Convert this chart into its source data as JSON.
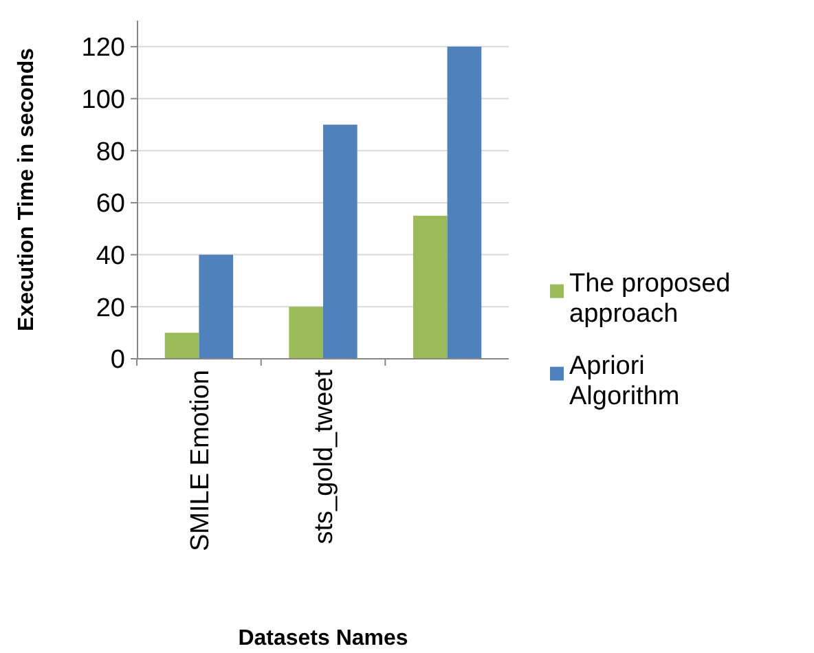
{
  "chart_data": {
    "type": "bar",
    "xlabel": "Datasets Names",
    "ylabel": "Execution Time in seconds",
    "categories": [
      "SMILE Emotion",
      "sts_gold_tweet",
      null
    ],
    "series": [
      {
        "name": "The proposed approach",
        "color": "#9bbb59",
        "values": [
          10,
          20,
          55
        ]
      },
      {
        "name": "Apriori Algorithm",
        "color": "#4f81bd",
        "values": [
          40,
          90,
          120
        ]
      }
    ],
    "ylim": [
      0,
      130
    ],
    "yticks": [
      0,
      20,
      40,
      60,
      80,
      100,
      120
    ],
    "grid": "y",
    "legend": "right"
  }
}
